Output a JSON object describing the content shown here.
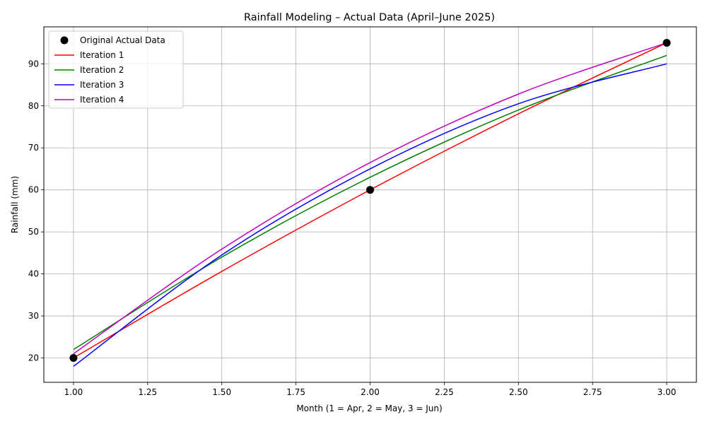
{
  "chart_data": {
    "type": "line",
    "title": "Rainfall Modeling – Actual Data (April–June 2025)",
    "xlabel": "Month (1 = Apr, 2 = May, 3 = Jun)",
    "ylabel": "Rainfall (mm)",
    "xlim": [
      0.9,
      3.1
    ],
    "ylim": [
      14.2,
      98.8
    ],
    "xticks": [
      1.0,
      1.25,
      1.5,
      1.75,
      2.0,
      2.25,
      2.5,
      2.75,
      3.0
    ],
    "xtick_labels": [
      "1.00",
      "1.25",
      "1.50",
      "1.75",
      "2.00",
      "2.25",
      "2.50",
      "2.75",
      "3.00"
    ],
    "yticks": [
      20,
      30,
      40,
      50,
      60,
      70,
      80,
      90
    ],
    "ytick_labels": [
      "20",
      "30",
      "40",
      "50",
      "60",
      "70",
      "80",
      "90"
    ],
    "grid": true,
    "legend_position": "top-left",
    "points": {
      "name": "Original Actual Data",
      "color": "#000000",
      "x": [
        1,
        2,
        3
      ],
      "y": [
        20,
        60,
        95
      ]
    },
    "series": [
      {
        "name": "Iteration 1",
        "color": "#ff0000",
        "x": [
          1.0,
          1.5,
          2.0,
          2.5,
          3.0
        ],
        "y": [
          20,
          40.6,
          60,
          78.1,
          95
        ]
      },
      {
        "name": "Iteration 2",
        "color": "#008000",
        "x": [
          1.0,
          1.5,
          2.0,
          2.5,
          3.0
        ],
        "y": [
          22,
          44.0,
          63,
          79.0,
          92
        ]
      },
      {
        "name": "Iteration 3",
        "color": "#0000ff",
        "x": [
          1.0,
          1.5,
          2.0,
          2.5,
          3.0
        ],
        "y": [
          18,
          44.5,
          65,
          80.5,
          90
        ]
      },
      {
        "name": "Iteration 4",
        "color": "#bf00bf",
        "x": [
          1.0,
          1.5,
          2.0,
          2.5,
          3.0
        ],
        "y": [
          21,
          45.9,
          66.5,
          82.8,
          95
        ]
      }
    ]
  }
}
